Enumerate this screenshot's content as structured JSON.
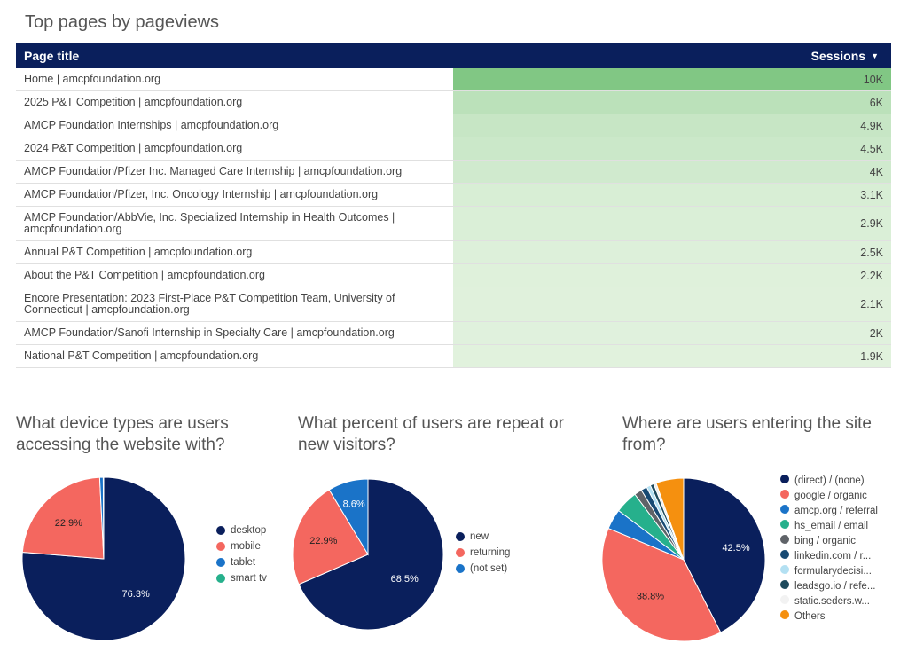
{
  "table": {
    "title": "Top pages by pageviews",
    "col_page": "Page title",
    "col_sessions": "Sessions",
    "rows": [
      {
        "page": "Home | amcpfoundation.org",
        "sessions": "10K",
        "value": 10000
      },
      {
        "page": "2025 P&T Competition | amcpfoundation.org",
        "sessions": "6K",
        "value": 6000
      },
      {
        "page": "AMCP Foundation Internships | amcpfoundation.org",
        "sessions": "4.9K",
        "value": 4900
      },
      {
        "page": "2024 P&T Competition | amcpfoundation.org",
        "sessions": "4.5K",
        "value": 4500
      },
      {
        "page": "AMCP Foundation/Pfizer Inc. Managed Care Internship | amcpfoundation.org",
        "sessions": "4K",
        "value": 4000
      },
      {
        "page": "AMCP Foundation/Pfizer, Inc. Oncology Internship | amcpfoundation.org",
        "sessions": "3.1K",
        "value": 3100
      },
      {
        "page": "AMCP Foundation/AbbVie, Inc. Specialized Internship in Health Outcomes | amcpfoundation.org",
        "sessions": "2.9K",
        "value": 2900
      },
      {
        "page": "Annual P&T Competition | amcpfoundation.org",
        "sessions": "2.5K",
        "value": 2500
      },
      {
        "page": "About the P&T Competition | amcpfoundation.org",
        "sessions": "2.2K",
        "value": 2200
      },
      {
        "page": "Encore Presentation: 2023 First-Place P&T Competition Team, University of Connecticut | amcpfoundation.org",
        "sessions": "2.1K",
        "value": 2100
      },
      {
        "page": "AMCP Foundation/Sanofi Internship in Specialty Care | amcpfoundation.org",
        "sessions": "2K",
        "value": 2000
      },
      {
        "page": "National P&T Competition | amcpfoundation.org",
        "sessions": "1.9K",
        "value": 1900
      }
    ]
  },
  "chart_data": [
    {
      "type": "pie",
      "title": "What device types are users accessing the website with?",
      "categories": [
        "desktop",
        "mobile",
        "tablet",
        "smart tv"
      ],
      "values": [
        76.3,
        22.9,
        0.7,
        0.1
      ],
      "labels": [
        "76.3%",
        "22.9%",
        "",
        ""
      ],
      "colors": [
        "#0a1f5c",
        "#f4675f",
        "#1a73c8",
        "#26b08c"
      ]
    },
    {
      "type": "pie",
      "title": "What percent of users are repeat or new visitors?",
      "categories": [
        "new",
        "returning",
        "(not set)"
      ],
      "values": [
        68.5,
        22.9,
        8.6
      ],
      "labels": [
        "68.5%",
        "22.9%",
        "8.6%"
      ],
      "colors": [
        "#0a1f5c",
        "#f4675f",
        "#1a73c8"
      ]
    },
    {
      "type": "pie",
      "title": "Where are users entering the site from?",
      "categories": [
        "(direct) / (none)",
        "google / organic",
        "amcp.org / referral",
        "hs_email / email",
        "bing / organic",
        "linkedin.com / r...",
        "formularydecisi...",
        "leadsgo.io / refe...",
        "static.seders.w...",
        "Others"
      ],
      "values": [
        42.5,
        38.8,
        4.0,
        4.5,
        1.5,
        1.2,
        0.8,
        0.7,
        0.5,
        5.5
      ],
      "labels": [
        "42.5%",
        "38.8%",
        "",
        "",
        "",
        "",
        "",
        "",
        "",
        ""
      ],
      "colors": [
        "#0a1f5c",
        "#f4675f",
        "#1a73c8",
        "#26b08c",
        "#5f6368",
        "#174a73",
        "#b3e0f2",
        "#1d4a5c",
        "#eeeeee",
        "#f5900f"
      ]
    }
  ]
}
